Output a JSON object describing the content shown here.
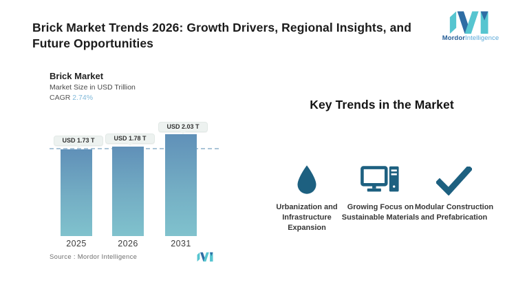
{
  "header": {
    "title": "Brick Market Trends 2026: Growth Drivers, Regional Insights, and Future Opportunities",
    "logo_word1": "Mordor",
    "logo_word2": "Intelligence"
  },
  "chart": {
    "title": "Brick Market",
    "subtitle": "Market Size in USD Trillion",
    "cagr_label": "CAGR ",
    "cagr_value": "2.74%",
    "source_line": "Source :  Mordor Intelligence"
  },
  "chart_data": {
    "type": "bar",
    "title": "Brick Market",
    "ylabel": "Market Size in USD Trillion",
    "cagr_percent": "2.74%",
    "categories": [
      "2025",
      "2026",
      "2031"
    ],
    "values": [
      1.73,
      1.78,
      2.03
    ],
    "value_labels": [
      "USD 1.73 T",
      "USD 1.78 T",
      "USD 2.03 T"
    ],
    "unit": "USD Trillion",
    "ylim": [
      0,
      2.2
    ],
    "dashed_reference_value": 1.73,
    "grid": "single dashed reference line at first bar top",
    "bar_gradient_top": "#6090b8",
    "bar_gradient_bottom": "#80c2cd",
    "source": "Source :  Mordor Intelligence"
  },
  "trends": {
    "heading": "Key Trends in the Market",
    "items": [
      {
        "icon": "water-drop-icon",
        "label": "Urbanization and Infrastructure Expansion"
      },
      {
        "icon": "desktop-computer-icon",
        "label": "Growing Focus on Sustainable Materials"
      },
      {
        "icon": "checkmark-icon",
        "label": "Modular Construction and Prefabrication"
      }
    ]
  },
  "colors": {
    "accent_teal": "#56c5d0",
    "accent_blue": "#2e6da4",
    "icon_blue": "#1d6080",
    "cagr_value_blue": "#7fb8d9",
    "dashed_line": "#aac4d7",
    "pill_background": "#edf2f0"
  }
}
